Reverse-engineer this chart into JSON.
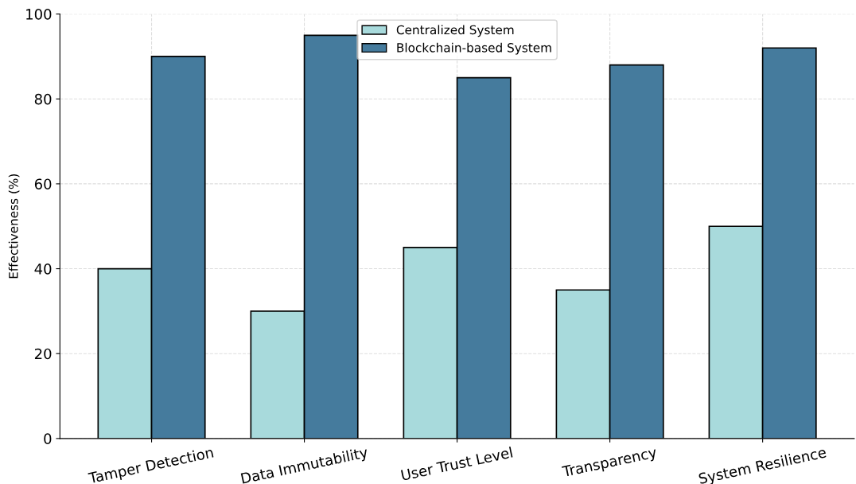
{
  "chart_data": {
    "type": "bar",
    "ylabel": "Effectiveness (%)",
    "categories": [
      "Tamper Detection",
      "Data Immutability",
      "User Trust Level",
      "Transparency",
      "System Resilience"
    ],
    "series": [
      {
        "name": "Centralized System",
        "color": "#a8dadc",
        "values": [
          40,
          30,
          45,
          35,
          50
        ]
      },
      {
        "name": "Blockchain-based System",
        "color": "#457b9d",
        "values": [
          90,
          95,
          85,
          88,
          92
        ]
      }
    ],
    "ylim": [
      0,
      100
    ],
    "yticks": [
      0,
      20,
      40,
      60,
      80,
      100
    ],
    "grid": true,
    "legend": "top"
  }
}
